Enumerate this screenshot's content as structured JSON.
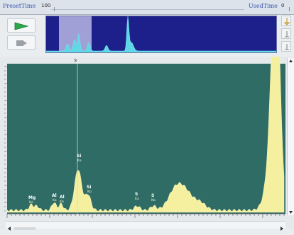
{
  "toolbar": {
    "preset_time_label": "PresetTime",
    "preset_time_value": "100",
    "used_time_label": "UsedTime",
    "used_time_value": "0"
  },
  "controls": {
    "start_icon": "play-icon",
    "stop_icon": "stop-icon"
  },
  "overview": {
    "icon_buttons": [
      "tool-icon",
      "arrow-up-icon",
      "arrow-down-icon"
    ]
  },
  "cursor": {
    "label": "Si"
  },
  "peaks": [
    {
      "element": "Mg",
      "line": "Ka"
    },
    {
      "element": "Al",
      "line": "Ka"
    },
    {
      "element": "Al",
      "line": "Kb"
    },
    {
      "element": "Si",
      "line": "Ka"
    },
    {
      "element": "Si",
      "line": "Kb"
    },
    {
      "element": "S",
      "line": "Ka"
    },
    {
      "element": "S",
      "line": "Kb"
    }
  ],
  "colors": {
    "plot_background": "#2f6c66",
    "spectrum_fill": "#f5f0a0",
    "overview_background": "#1d1f8a",
    "overview_spectrum": "#5fd7e4",
    "accent_green": "#2aa84a"
  }
}
